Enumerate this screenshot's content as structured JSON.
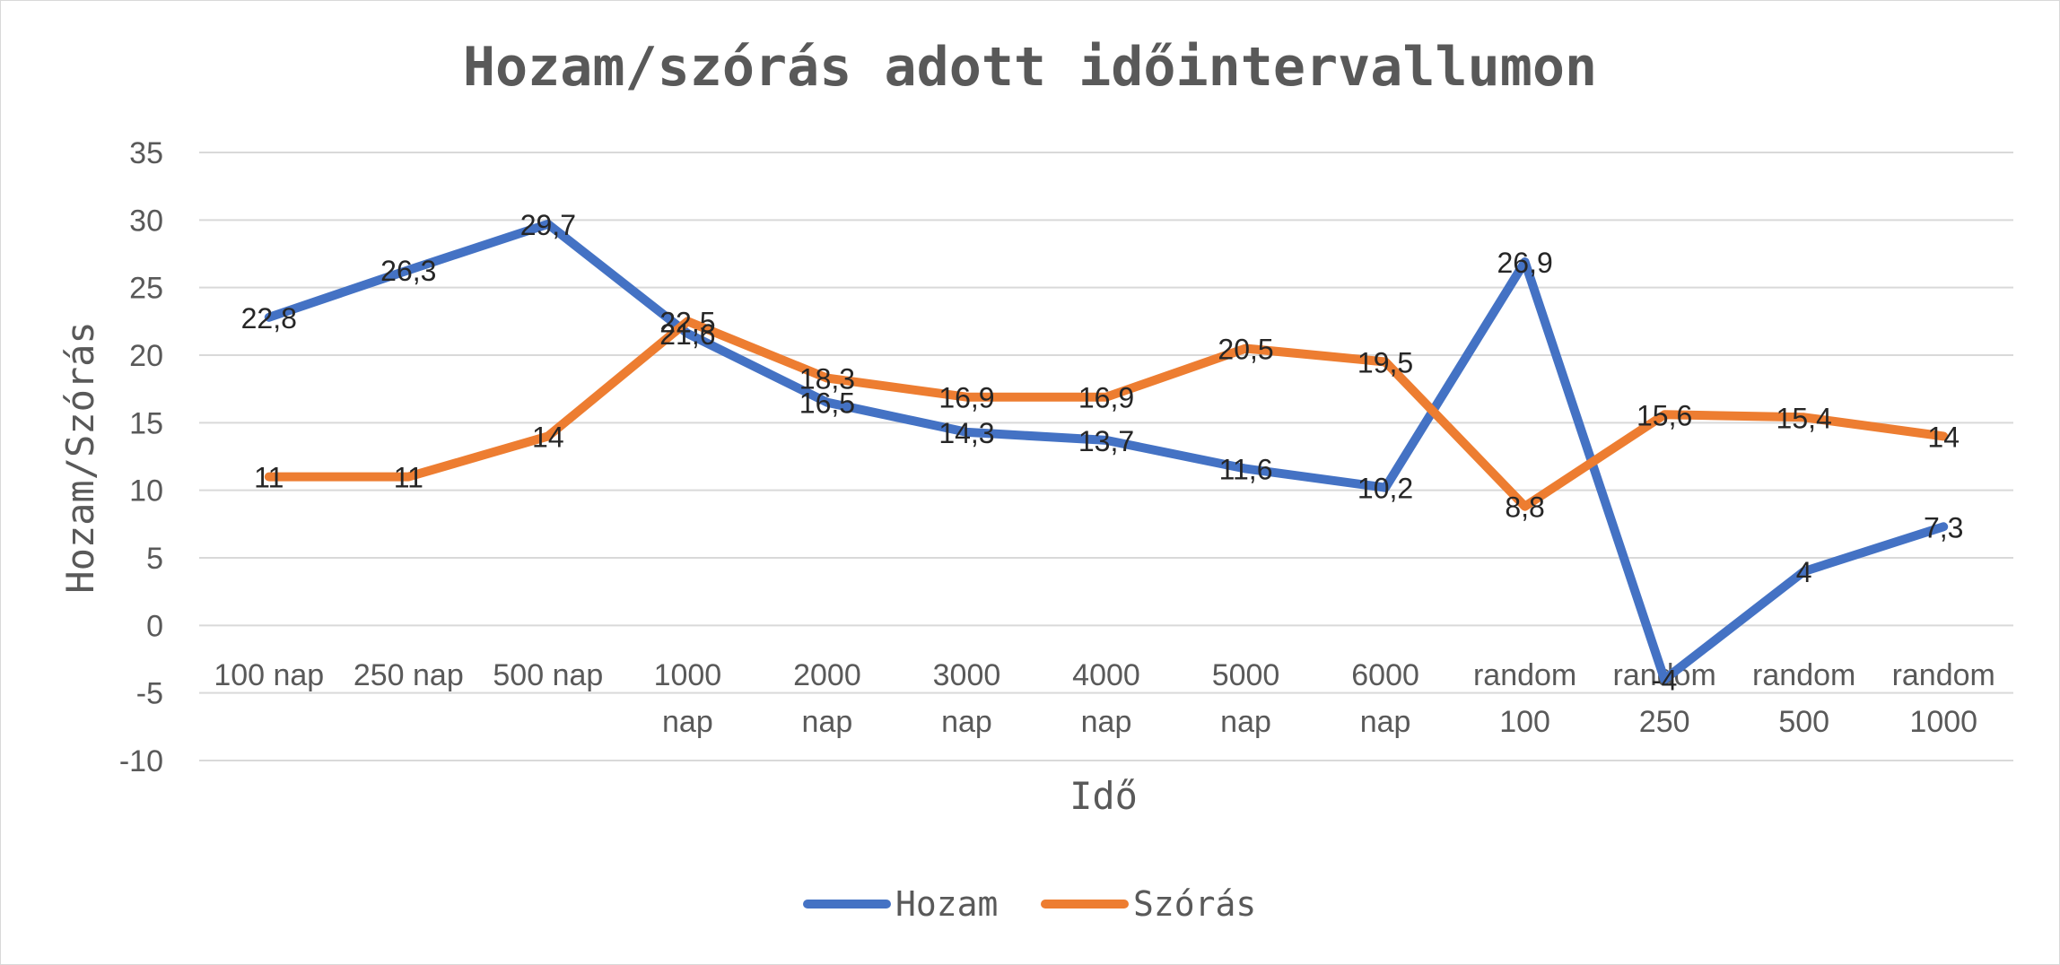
{
  "chart_data": {
    "type": "line",
    "title": "Hozam/szórás adott időintervallumon",
    "xlabel": "Idő",
    "ylabel": "Hozam/Szórás",
    "ylim": [
      -10,
      35
    ],
    "yticks": [
      "-10",
      "-5",
      "0",
      "5",
      "10",
      "15",
      "20",
      "25",
      "30",
      "35"
    ],
    "categories": [
      [
        "100 nap"
      ],
      [
        "250 nap"
      ],
      [
        "500 nap"
      ],
      [
        "1000",
        "nap"
      ],
      [
        "2000",
        "nap"
      ],
      [
        "3000",
        "nap"
      ],
      [
        "4000",
        "nap"
      ],
      [
        "5000",
        "nap"
      ],
      [
        "6000",
        "nap"
      ],
      [
        "random",
        "100"
      ],
      [
        "random",
        "250"
      ],
      [
        "random",
        "500"
      ],
      [
        "random",
        "1000"
      ]
    ],
    "series": [
      {
        "name": "Hozam",
        "color": "#4472c4",
        "values": [
          22.8,
          26.3,
          29.7,
          21.6,
          16.5,
          14.3,
          13.7,
          11.6,
          10.2,
          26.9,
          -4,
          4,
          7.3
        ],
        "labels": [
          "22,8",
          "26,3",
          "29,7",
          "21,6",
          "16,5",
          "14,3",
          "13,7",
          "11,6",
          "10,2",
          "26,9",
          "-4",
          "4",
          "7,3"
        ]
      },
      {
        "name": "Szórás",
        "color": "#ed7d31",
        "values": [
          11,
          11,
          14,
          22.5,
          18.3,
          16.9,
          16.9,
          20.5,
          19.5,
          8.8,
          15.6,
          15.4,
          14
        ],
        "labels": [
          "11",
          "11",
          "14",
          "22,5",
          "18,3",
          "16,9",
          "16,9",
          "20,5",
          "19,5",
          "8,8",
          "15,6",
          "15,4",
          "14"
        ]
      }
    ],
    "grid": true,
    "legend": "bottom"
  }
}
